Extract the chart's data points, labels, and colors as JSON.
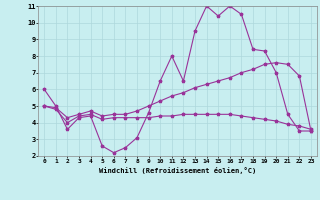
{
  "xlabel": "Windchill (Refroidissement éolien,°C)",
  "background_color": "#c8eef0",
  "grid_color": "#aed8dc",
  "line_color": "#993399",
  "xlim": [
    -0.5,
    23.5
  ],
  "ylim": [
    2,
    11
  ],
  "xticks": [
    0,
    1,
    2,
    3,
    4,
    5,
    6,
    7,
    8,
    9,
    10,
    11,
    12,
    13,
    14,
    15,
    16,
    17,
    18,
    19,
    20,
    21,
    22,
    23
  ],
  "yticks": [
    2,
    3,
    4,
    5,
    6,
    7,
    8,
    9,
    10,
    11
  ],
  "line1_x": [
    0,
    1,
    2,
    3,
    4,
    5,
    6,
    7,
    8,
    9,
    10,
    11,
    12,
    13,
    14,
    15,
    16,
    17,
    18,
    19,
    20,
    21,
    22,
    23
  ],
  "line1_y": [
    6.0,
    5.0,
    3.6,
    4.3,
    4.4,
    2.6,
    2.2,
    2.5,
    3.1,
    4.6,
    6.5,
    8.0,
    6.5,
    9.5,
    11.0,
    10.4,
    11.0,
    10.5,
    8.4,
    8.3,
    7.0,
    4.5,
    3.5,
    3.5
  ],
  "line2_x": [
    0,
    1,
    2,
    3,
    4,
    5,
    6,
    7,
    8,
    9,
    10,
    11,
    12,
    13,
    14,
    15,
    16,
    17,
    18,
    19,
    20,
    21,
    22,
    23
  ],
  "line2_y": [
    5.0,
    4.9,
    4.3,
    4.5,
    4.7,
    4.4,
    4.5,
    4.5,
    4.7,
    5.0,
    5.3,
    5.6,
    5.8,
    6.1,
    6.3,
    6.5,
    6.7,
    7.0,
    7.2,
    7.5,
    7.6,
    7.5,
    6.8,
    3.5
  ],
  "line3_x": [
    0,
    1,
    2,
    3,
    4,
    5,
    6,
    7,
    8,
    9,
    10,
    11,
    12,
    13,
    14,
    15,
    16,
    17,
    18,
    19,
    20,
    21,
    22,
    23
  ],
  "line3_y": [
    5.0,
    4.8,
    4.0,
    4.4,
    4.5,
    4.2,
    4.3,
    4.3,
    4.3,
    4.3,
    4.4,
    4.4,
    4.5,
    4.5,
    4.5,
    4.5,
    4.5,
    4.4,
    4.3,
    4.2,
    4.1,
    3.9,
    3.8,
    3.6
  ]
}
